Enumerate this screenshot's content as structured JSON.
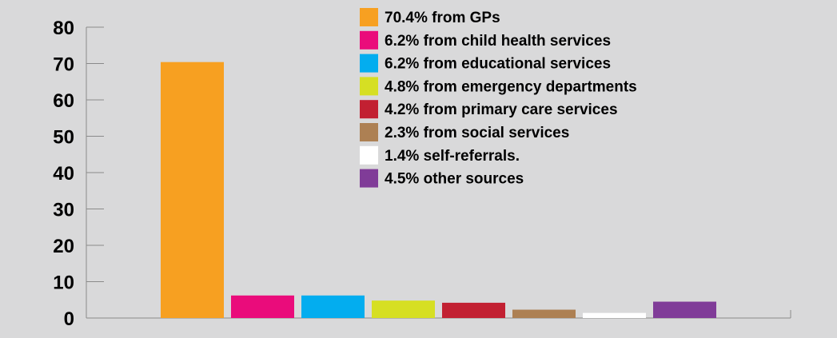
{
  "chart_data": {
    "type": "bar",
    "categories": [
      "70.4% from GPs",
      "6.2% from child health services",
      "6.2% from educational services",
      "4.8% from emergency departments",
      "4.2% from primary care services",
      "2.3% from social services",
      "1.4% self-referrals.",
      "4.5% other sources"
    ],
    "values": [
      70.4,
      6.2,
      6.2,
      4.8,
      4.2,
      2.3,
      1.4,
      4.5
    ],
    "colors": [
      "#f7a021",
      "#ea0c7b",
      "#03adef",
      "#d6df23",
      "#c22032",
      "#ad8053",
      "#ffffff",
      "#803c98"
    ],
    "title": "",
    "xlabel": "",
    "ylabel": "",
    "ylim": [
      0,
      80
    ],
    "yticks": [
      0,
      10,
      20,
      30,
      40,
      50,
      60,
      70,
      80
    ],
    "grid": false,
    "legend": "top-right"
  }
}
